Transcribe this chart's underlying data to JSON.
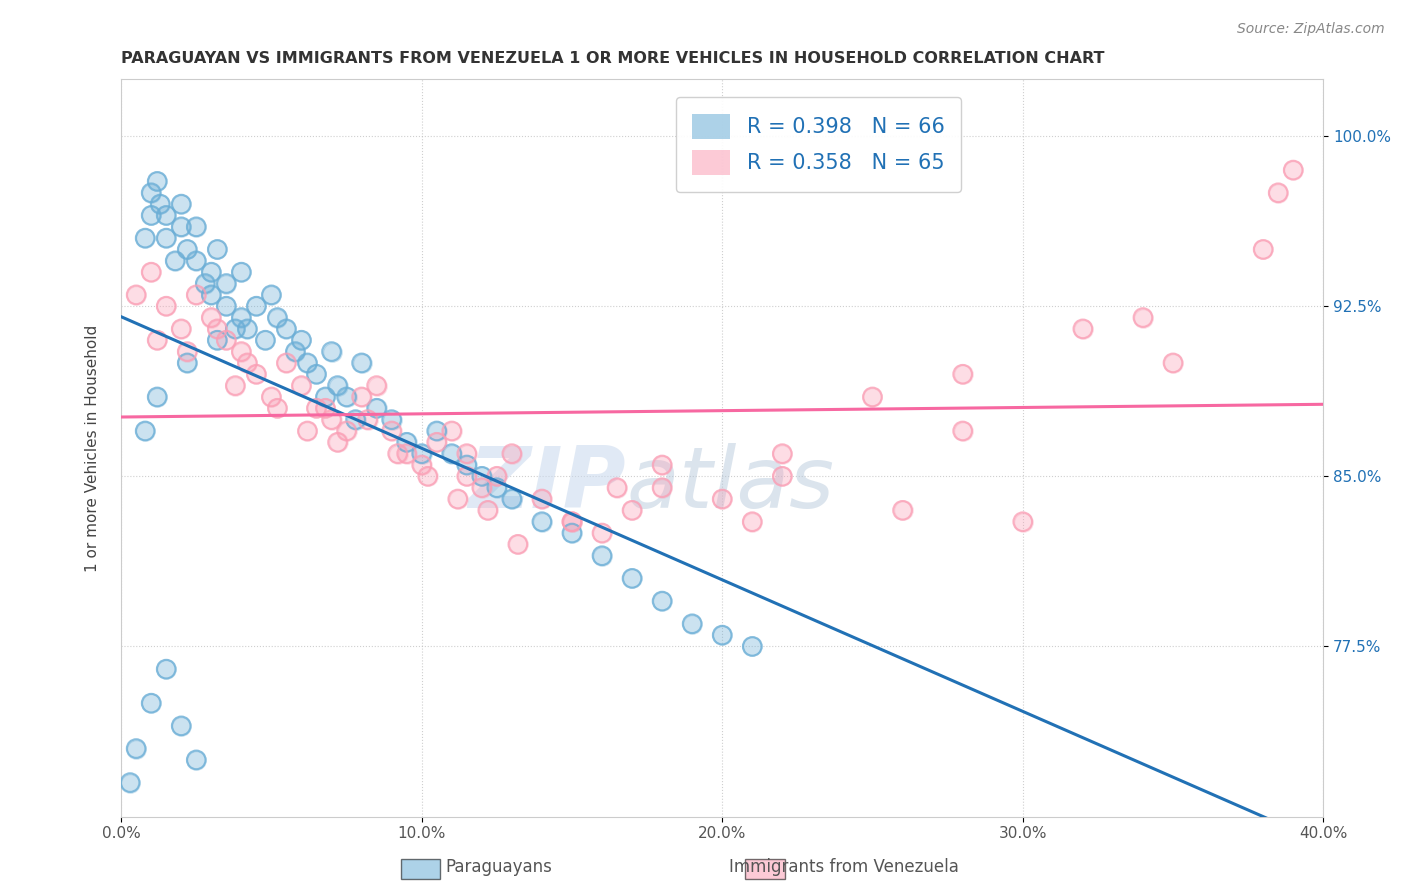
{
  "title": "PARAGUAYAN VS IMMIGRANTS FROM VENEZUELA 1 OR MORE VEHICLES IN HOUSEHOLD CORRELATION CHART",
  "source": "Source: ZipAtlas.com",
  "ylabel": "1 or more Vehicles in Household",
  "xlabel_blue": "Paraguayans",
  "xlabel_pink": "Immigrants from Venezuela",
  "xmin": 0.0,
  "xmax": 40.0,
  "ymin": 70.0,
  "ymax": 102.5,
  "yticks": [
    77.5,
    85.0,
    92.5,
    100.0
  ],
  "xticks": [
    0.0,
    10.0,
    20.0,
    30.0,
    40.0
  ],
  "legend_blue_R": "R = 0.398",
  "legend_blue_N": "N = 66",
  "legend_pink_R": "R = 0.358",
  "legend_pink_N": "N = 65",
  "blue_color": "#6baed6",
  "pink_color": "#fa9fb5",
  "blue_line_color": "#2171b5",
  "pink_line_color": "#f768a1",
  "watermark_ZIP": "ZIP",
  "watermark_atlas": "atlas",
  "blue_x": [
    0.3,
    0.5,
    0.8,
    1.0,
    1.0,
    1.2,
    1.3,
    1.5,
    1.5,
    1.8,
    2.0,
    2.0,
    2.2,
    2.5,
    2.5,
    2.8,
    3.0,
    3.0,
    3.2,
    3.5,
    3.5,
    3.8,
    4.0,
    4.0,
    4.2,
    4.5,
    4.8,
    5.0,
    5.2,
    5.5,
    5.8,
    6.0,
    6.2,
    6.5,
    6.8,
    7.0,
    7.2,
    7.5,
    7.8,
    8.0,
    8.5,
    9.0,
    9.5,
    10.0,
    10.5,
    11.0,
    11.5,
    12.0,
    12.5,
    13.0,
    14.0,
    15.0,
    16.0,
    17.0,
    18.0,
    19.0,
    20.0,
    21.0,
    1.0,
    1.5,
    2.0,
    2.5,
    0.8,
    1.2,
    2.2,
    3.2
  ],
  "blue_y": [
    71.5,
    73.0,
    95.5,
    96.5,
    97.5,
    98.0,
    97.0,
    96.5,
    95.5,
    94.5,
    96.0,
    97.0,
    95.0,
    96.0,
    94.5,
    93.5,
    93.0,
    94.0,
    95.0,
    93.5,
    92.5,
    91.5,
    94.0,
    92.0,
    91.5,
    92.5,
    91.0,
    93.0,
    92.0,
    91.5,
    90.5,
    91.0,
    90.0,
    89.5,
    88.5,
    90.5,
    89.0,
    88.5,
    87.5,
    90.0,
    88.0,
    87.5,
    86.5,
    86.0,
    87.0,
    86.0,
    85.5,
    85.0,
    84.5,
    84.0,
    83.0,
    82.5,
    81.5,
    80.5,
    79.5,
    78.5,
    78.0,
    77.5,
    75.0,
    76.5,
    74.0,
    72.5,
    87.0,
    88.5,
    90.0,
    91.0
  ],
  "pink_x": [
    0.5,
    1.0,
    1.5,
    2.0,
    2.5,
    3.0,
    3.5,
    4.0,
    4.5,
    5.0,
    5.5,
    6.0,
    6.5,
    7.0,
    7.5,
    8.0,
    8.5,
    9.0,
    9.5,
    10.0,
    10.5,
    11.0,
    11.5,
    12.0,
    12.5,
    13.0,
    14.0,
    15.0,
    16.0,
    17.0,
    18.0,
    20.0,
    22.0,
    25.0,
    28.0,
    30.0,
    32.0,
    35.0,
    38.0,
    1.2,
    2.2,
    3.2,
    4.2,
    5.2,
    6.2,
    7.2,
    8.2,
    9.2,
    10.2,
    11.2,
    12.2,
    13.2,
    15.0,
    18.0,
    22.0,
    26.0,
    3.8,
    6.8,
    11.5,
    16.5,
    21.0,
    28.0,
    34.0,
    38.5,
    39.0
  ],
  "pink_y": [
    93.0,
    94.0,
    92.5,
    91.5,
    93.0,
    92.0,
    91.0,
    90.5,
    89.5,
    88.5,
    90.0,
    89.0,
    88.0,
    87.5,
    87.0,
    88.5,
    89.0,
    87.0,
    86.0,
    85.5,
    86.5,
    87.0,
    85.0,
    84.5,
    85.0,
    86.0,
    84.0,
    83.0,
    82.5,
    83.5,
    85.5,
    84.0,
    86.0,
    88.5,
    89.5,
    83.0,
    91.5,
    90.0,
    95.0,
    91.0,
    90.5,
    91.5,
    90.0,
    88.0,
    87.0,
    86.5,
    87.5,
    86.0,
    85.0,
    84.0,
    83.5,
    82.0,
    83.0,
    84.5,
    85.0,
    83.5,
    89.0,
    88.0,
    86.0,
    84.5,
    83.0,
    87.0,
    92.0,
    97.5,
    98.5
  ]
}
